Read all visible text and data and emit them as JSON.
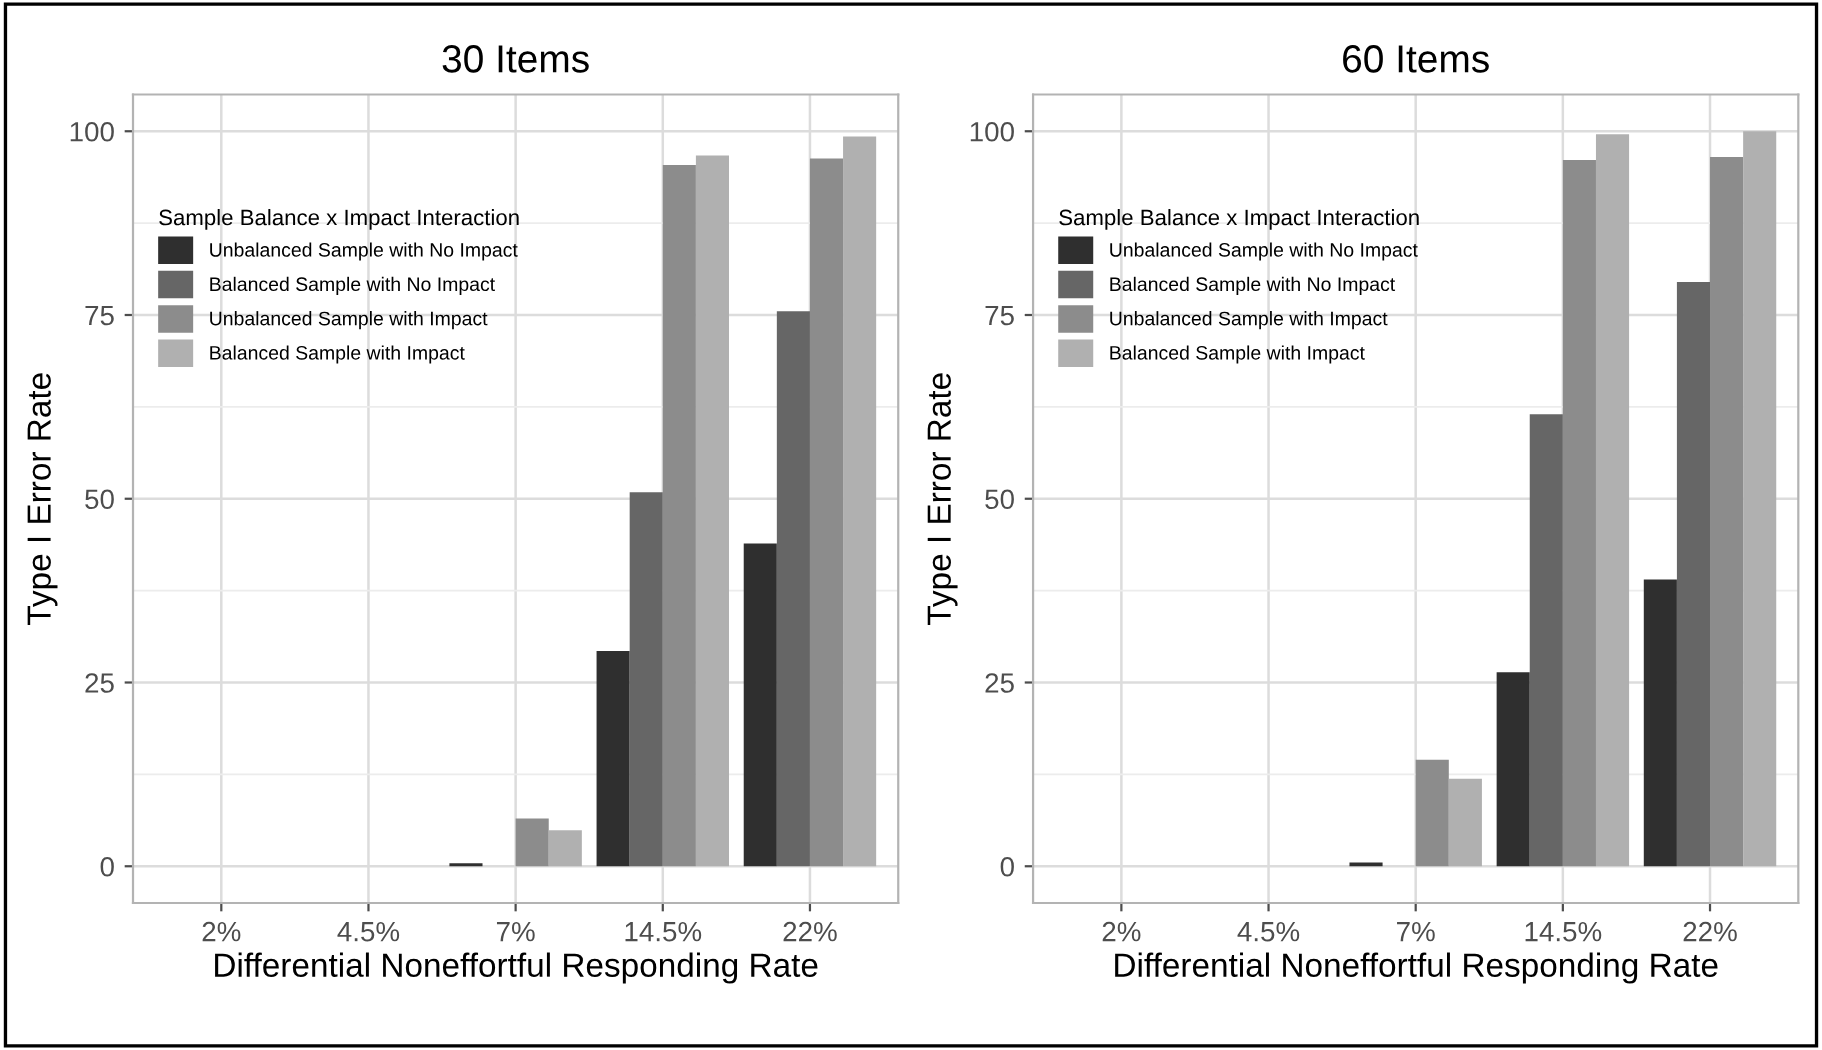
{
  "chart_data": [
    {
      "type": "bar",
      "title": "30 Items",
      "xlabel": "Differential Noneffortful Responding Rate",
      "ylabel": "Type I Error Rate",
      "legend_title": "Sample Balance x Impact Interaction",
      "categories": [
        "2%",
        "4.5%",
        "7%",
        "14.5%",
        "22%"
      ],
      "series": [
        {
          "name": "Unbalanced Sample with No Impact",
          "color": "#2f2f2f",
          "values": [
            0,
            0,
            0.4,
            29.3,
            43.9
          ]
        },
        {
          "name": "Balanced Sample with No Impact",
          "color": "#666666",
          "values": [
            0,
            0,
            0,
            50.9,
            75.5
          ]
        },
        {
          "name": "Unbalanced Sample with Impact",
          "color": "#8c8c8c",
          "values": [
            0,
            0,
            6.5,
            95.4,
            96.3
          ]
        },
        {
          "name": "Balanced Sample with Impact",
          "color": "#b0b0b0",
          "values": [
            0,
            0,
            4.9,
            96.7,
            99.3
          ]
        }
      ],
      "ylim": [
        -5,
        105
      ],
      "yticks": [
        0,
        25,
        50,
        75,
        100
      ],
      "grid": true,
      "legend": "top left"
    },
    {
      "type": "bar",
      "title": "60 Items",
      "xlabel": "Differential Noneffortful Responding Rate",
      "ylabel": "Type I Error Rate",
      "legend_title": "Sample Balance x Impact Interaction",
      "categories": [
        "2%",
        "4.5%",
        "7%",
        "14.5%",
        "22%"
      ],
      "series": [
        {
          "name": "Unbalanced Sample with No Impact",
          "color": "#2f2f2f",
          "values": [
            0,
            0,
            0.5,
            26.4,
            39.0
          ]
        },
        {
          "name": "Balanced Sample with No Impact",
          "color": "#666666",
          "values": [
            0,
            0,
            0,
            61.5,
            79.5
          ]
        },
        {
          "name": "Unbalanced Sample with Impact",
          "color": "#8c8c8c",
          "values": [
            0,
            0,
            14.5,
            96.1,
            96.5
          ]
        },
        {
          "name": "Balanced Sample with Impact",
          "color": "#b0b0b0",
          "values": [
            0,
            0,
            11.9,
            99.6,
            100
          ]
        }
      ],
      "ylim": [
        -5,
        105
      ],
      "yticks": [
        0,
        25,
        50,
        75,
        100
      ],
      "grid": true,
      "legend": "top left"
    }
  ]
}
